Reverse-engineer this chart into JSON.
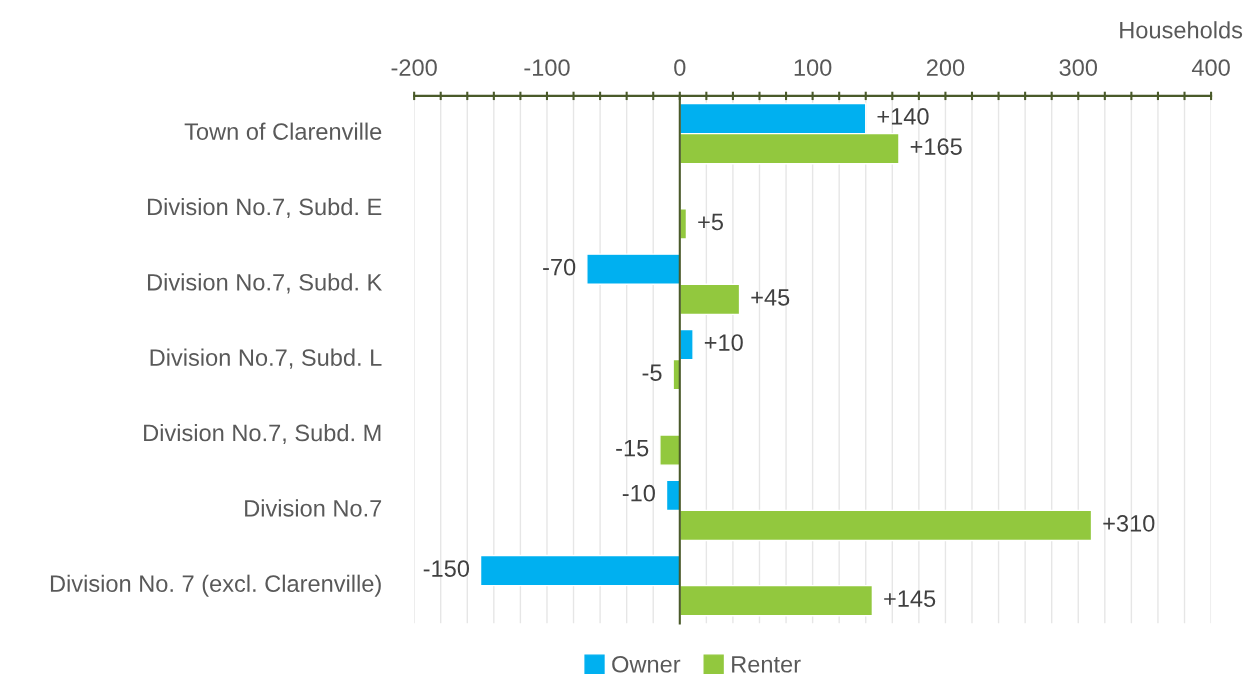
{
  "chart_data": {
    "type": "bar",
    "orientation": "horizontal",
    "xlabel": "Households",
    "categories": [
      "Town of Clarenville",
      "Division No.7, Subd. E",
      "Division No.7, Subd. K",
      "Division No.7, Subd. L",
      "Division No.7, Subd. M",
      "Division No.7",
      "Division No. 7 (excl. Clarenville)"
    ],
    "series": [
      {
        "name": "Owner",
        "color": "#00b0f0",
        "values": [
          140,
          null,
          -70,
          10,
          null,
          -10,
          -150
        ],
        "value_labels": [
          "+140",
          null,
          "-70",
          "+10",
          null,
          "-10",
          "-150"
        ]
      },
      {
        "name": "Renter",
        "color": "#92c83e",
        "values": [
          165,
          5,
          45,
          -5,
          -15,
          310,
          145
        ],
        "value_labels": [
          "+165",
          "+5",
          "+45",
          "-5",
          "-15",
          "+310",
          "+145"
        ]
      }
    ],
    "xlim": [
      -200,
      400
    ],
    "xticks": [
      -200,
      {
        "value": -180,
        "label": null
      },
      {
        "value": -160,
        "label": null
      },
      {
        "value": -140,
        "label": null
      },
      {
        "value": -120,
        "label": null
      },
      -100,
      {
        "value": -80,
        "label": null
      },
      {
        "value": -60,
        "label": null
      },
      {
        "value": -40,
        "label": null
      },
      {
        "value": -20,
        "label": null
      },
      0,
      {
        "value": 20,
        "label": null
      },
      {
        "value": 40,
        "label": null
      },
      {
        "value": 60,
        "label": null
      },
      {
        "value": 80,
        "label": null
      },
      100,
      {
        "value": 120,
        "label": null
      },
      {
        "value": 140,
        "label": null
      },
      {
        "value": 160,
        "label": null
      },
      {
        "value": 180,
        "label": null
      },
      200,
      {
        "value": 220,
        "label": null
      },
      {
        "value": 240,
        "label": null
      },
      {
        "value": 260,
        "label": null
      },
      {
        "value": 280,
        "label": null
      },
      300,
      {
        "value": 320,
        "label": null
      },
      {
        "value": 340,
        "label": null
      },
      {
        "value": 360,
        "label": null
      },
      {
        "value": 380,
        "label": null
      },
      400
    ],
    "grid": "x",
    "legend": "bottom"
  }
}
